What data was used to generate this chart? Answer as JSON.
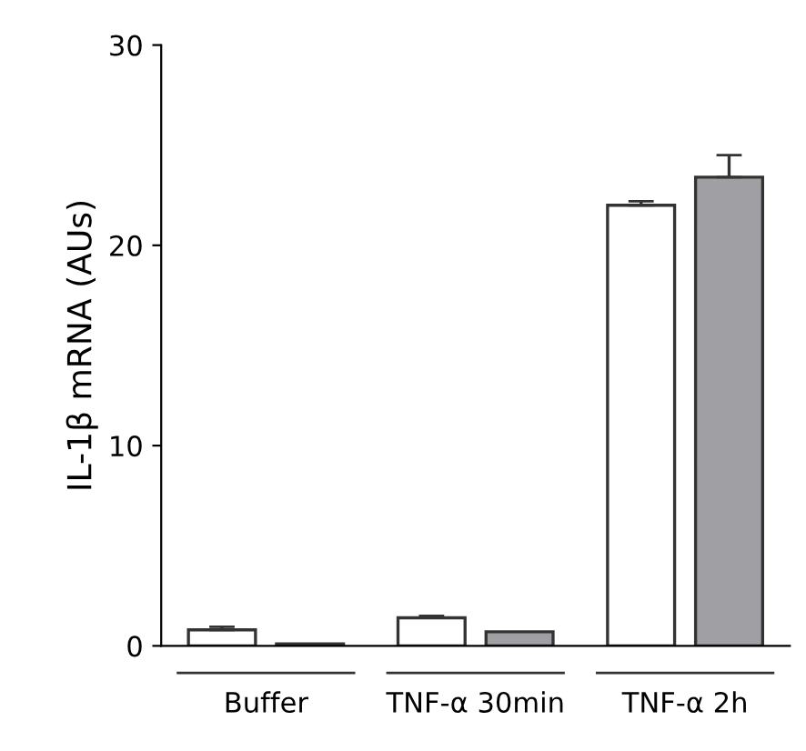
{
  "chart_data": {
    "type": "bar",
    "ylabel": "IL-1β mRNA (AUs)",
    "categories": [
      "Buffer",
      "TNF-α 30min",
      "TNF-α 2h"
    ],
    "series": [
      {
        "color": "#ffffff",
        "values": [
          0.8,
          1.4,
          22
        ],
        "errors": [
          [
            0.8,
            0.95
          ],
          [
            1.4,
            1.5
          ],
          [
            22,
            22.2
          ]
        ]
      },
      {
        "color": "#a0a0a4",
        "values": [
          0.1,
          0.7,
          23.4
        ],
        "errors": [
          null,
          null,
          [
            23.4,
            24.5
          ]
        ]
      }
    ],
    "ylim": [
      0,
      30
    ],
    "yticks": [
      0,
      10,
      20,
      30
    ],
    "grid": false,
    "legend": false
  }
}
